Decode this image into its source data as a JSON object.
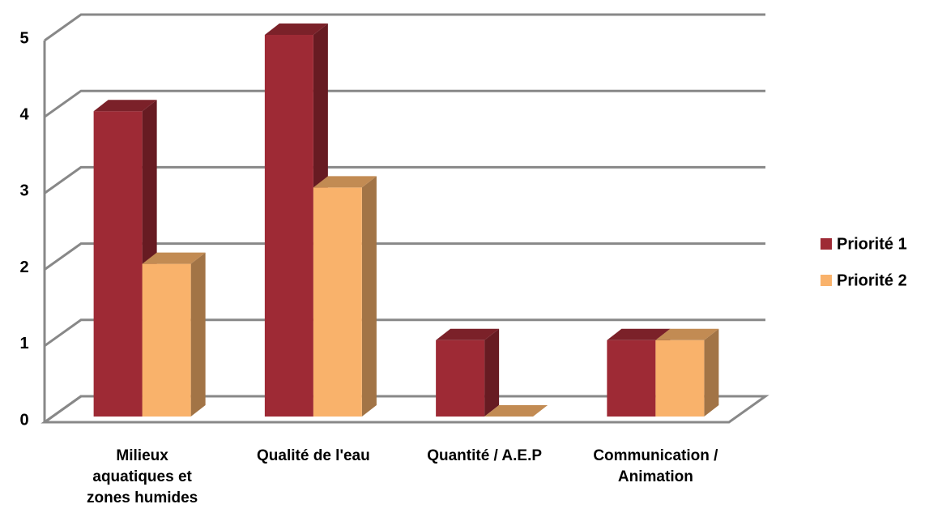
{
  "chart_data": {
    "type": "bar3d",
    "categories": [
      "Milieux aquatiques et zones humides",
      "Qualité de l'eau",
      "Quantité / A.E.P",
      "Communication / Animation"
    ],
    "series": [
      {
        "name": "Priorité 1",
        "color": "#9e2a35",
        "values": [
          4,
          5,
          1,
          1
        ]
      },
      {
        "name": "Priorité 2",
        "color": "#f9b26b",
        "values": [
          2,
          3,
          0,
          1
        ]
      }
    ],
    "ylim": [
      0,
      5
    ],
    "yticks": [
      0,
      1,
      2,
      3,
      4,
      5
    ],
    "grid": true,
    "legend": "right"
  }
}
